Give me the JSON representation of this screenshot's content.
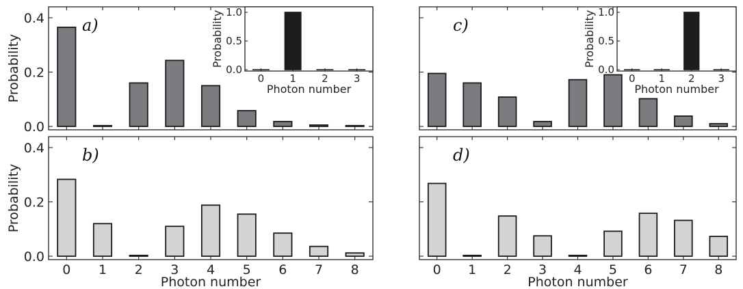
{
  "chart_data": [
    {
      "panel": "a)",
      "type": "bar",
      "categories": [
        "0",
        "1",
        "2",
        "3",
        "4",
        "5",
        "6",
        "7",
        "8"
      ],
      "values": [
        0.365,
        0.003,
        0.16,
        0.243,
        0.15,
        0.058,
        0.018,
        0.005,
        0.003
      ],
      "ylabel": "Probability",
      "xlabel": "",
      "ylim": [
        0,
        0.44
      ],
      "yticks": [
        "0.0",
        "0.2",
        "0.4"
      ],
      "bar_color": "#7b7c80",
      "inset": {
        "type": "bar",
        "categories": [
          "0",
          "1",
          "2",
          "3"
        ],
        "values": [
          0.0,
          1.0,
          0.0,
          0.0
        ],
        "ylabel": "Probability",
        "xlabel": "Photon number",
        "ylim": [
          0,
          1.05
        ],
        "yticks": [
          "0.0",
          "0.5",
          "1.0"
        ],
        "bar_color": "#1e1c1d"
      }
    },
    {
      "panel": "b)",
      "type": "bar",
      "categories": [
        "0",
        "1",
        "2",
        "3",
        "4",
        "5",
        "6",
        "7",
        "8"
      ],
      "values": [
        0.283,
        0.12,
        0.003,
        0.11,
        0.188,
        0.155,
        0.085,
        0.036,
        0.012
      ],
      "ylabel": "Probability",
      "xlabel": "Photon number",
      "ylim": [
        0,
        0.44
      ],
      "yticks": [
        "0.0",
        "0.2",
        "0.4"
      ],
      "bar_color": "#d3d4d6"
    },
    {
      "panel": "c)",
      "type": "bar",
      "categories": [
        "0",
        "1",
        "2",
        "3",
        "4",
        "5",
        "6",
        "7",
        "8"
      ],
      "values": [
        0.195,
        0.16,
        0.108,
        0.018,
        0.172,
        0.19,
        0.102,
        0.038,
        0.01
      ],
      "ylabel": "",
      "xlabel": "",
      "ylim": [
        0,
        0.44
      ],
      "yticks": [],
      "bar_color": "#7b7c80",
      "inset": {
        "type": "bar",
        "categories": [
          "0",
          "1",
          "2",
          "3"
        ],
        "values": [
          0.0,
          0.0,
          1.0,
          0.0
        ],
        "ylabel": "Probability",
        "xlabel": "Photon number",
        "ylim": [
          0,
          1.05
        ],
        "yticks": [
          "0.0",
          "0.5",
          "1.0"
        ],
        "bar_color": "#1e1c1d"
      }
    },
    {
      "panel": "d)",
      "type": "bar",
      "categories": [
        "0",
        "1",
        "2",
        "3",
        "4",
        "5",
        "6",
        "7",
        "8"
      ],
      "values": [
        0.268,
        0.003,
        0.148,
        0.075,
        0.003,
        0.092,
        0.158,
        0.132,
        0.073
      ],
      "ylabel": "",
      "xlabel": "Photon number",
      "ylim": [
        0,
        0.44
      ],
      "yticks": [],
      "bar_color": "#d3d4d6"
    }
  ]
}
